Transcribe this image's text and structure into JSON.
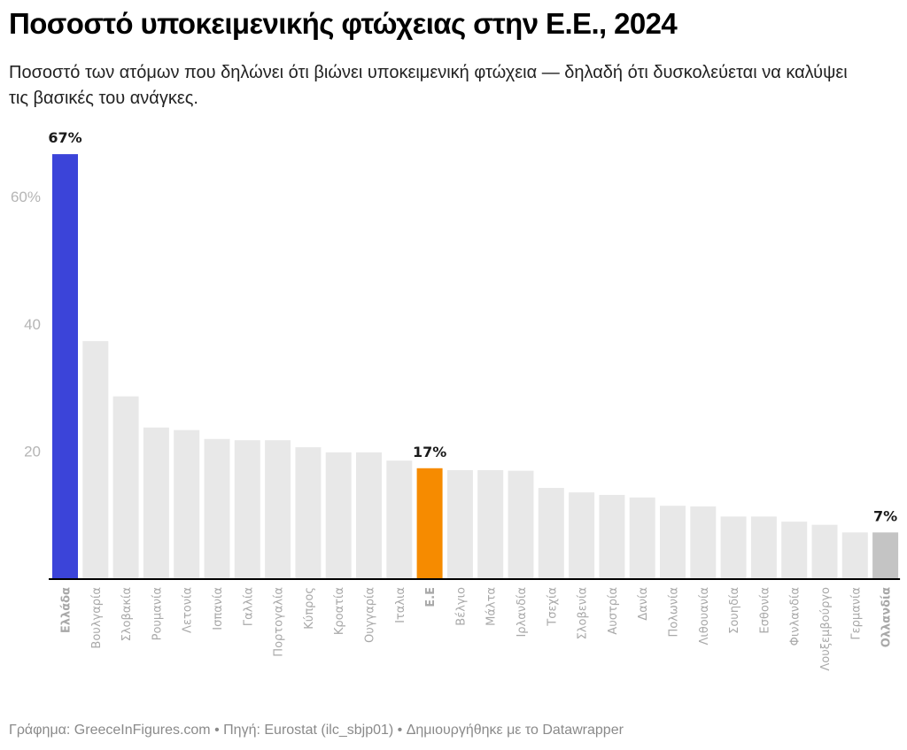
{
  "header": {
    "title": "Ποσοστό υποκειμενικής φτώχειας στην Ε.Ε., 2024",
    "subtitle": "Ποσοστό των ατόμων που δηλώνει ότι βιώνει υποκειμενική φτώχεια — δηλαδή ότι δυσκολεύεται να καλύψει τις βασικές του ανάγκες."
  },
  "footer": {
    "text": "Γράφημα: GreeceInFigures.com • Πηγή: Eurostat (ilc_sbjp01)  • Δημιουργήθηκε με το Datawrapper"
  },
  "colors": {
    "default_bar": "#e8e8e8",
    "greece": "#3b44d9",
    "eu": "#f68b00",
    "netherlands": "#c4c4c4",
    "axis": "#000000"
  },
  "chart_data": {
    "type": "bar",
    "title": "Ποσοστό υποκειμενικής φτώχειας στην Ε.Ε., 2024",
    "xlabel": "",
    "ylabel": "",
    "ylim": [
      0,
      70
    ],
    "yticks": [
      20,
      40,
      60
    ],
    "ytick_labels": [
      "20",
      "40",
      "60%"
    ],
    "grid": false,
    "categories": [
      "Ελλάδα",
      "Βουλγαρία",
      "Σλοβακία",
      "Ρουμανία",
      "Λετονία",
      "Ισπανία",
      "Γαλλία",
      "Πορτογαλία",
      "Κύπρος",
      "Κροατία",
      "Ουγγαρία",
      "Ιταλια",
      "Ε.Ε",
      "Βέλγιο",
      "Μάλτα",
      "Ιρλανδία",
      "Τσεχία",
      "Σλοβενία",
      "Αυστρία",
      "Δανία",
      "Πολωνία",
      "Λιθουανία",
      "Σουηδία",
      "Εσθονία",
      "Φινλανδία",
      "Λουξεμβούργο",
      "Γερμανία",
      "Ολλανδία"
    ],
    "values": [
      66.7,
      37.3,
      28.6,
      23.7,
      23.3,
      21.9,
      21.7,
      21.7,
      20.6,
      19.8,
      19.8,
      18.5,
      17.3,
      17.0,
      17.0,
      16.9,
      14.2,
      13.5,
      13.1,
      12.7,
      11.4,
      11.3,
      9.7,
      9.7,
      8.9,
      8.4,
      7.2,
      7.2
    ],
    "highlights": [
      {
        "category": "Ελλάδα",
        "color_key": "greece",
        "label": "67%"
      },
      {
        "category": "Ε.Ε",
        "color_key": "eu",
        "label": "17%"
      },
      {
        "category": "Ολλανδία",
        "color_key": "netherlands",
        "label": "7%"
      }
    ]
  }
}
